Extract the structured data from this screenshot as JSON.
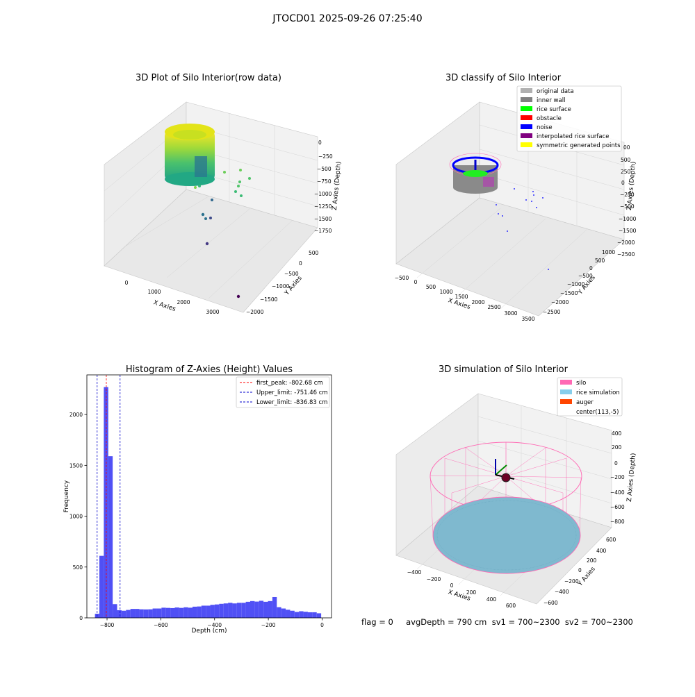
{
  "suptitle": "JTOCD01 2025-09-26 07:25:40",
  "status_text": "flag = 0     avgDepth = 790 cm  sv1 = 700~2300  sv2 = 700~2300",
  "colors": {
    "bars": "#5050f5",
    "first_peak_line": "#ff0000",
    "limit_lines": "#0000cc",
    "silo": "#ff69b4",
    "rice_simulation": "#87ceeb",
    "auger": "#ff4500"
  },
  "chart_data": [
    {
      "type": "scatter",
      "title": "3D Plot of Silo Interior(row data)",
      "xlabel": "X Axies",
      "ylabel": "Y Axies",
      "zlabel": "Z Axies (Depth)",
      "x_ticks": [
        "0",
        "1000",
        "2000",
        "3000"
      ],
      "y_ticks": [
        "500",
        "0",
        "−500",
        "−1000",
        "−1500",
        "−2000"
      ],
      "z_ticks": [
        "0",
        "−250",
        "−500",
        "−750",
        "−1000",
        "−1250",
        "−1500",
        "−1750"
      ],
      "colormap": "viridis"
    },
    {
      "type": "scatter",
      "title": "3D classify of Silo Interior",
      "xlabel": "X Axies",
      "ylabel": "Y Axies",
      "zlabel": "Z Axies (Depth)",
      "x_ticks": [
        "−500",
        "0",
        "500",
        "1000",
        "1500",
        "2000",
        "2500",
        "3000",
        "3500"
      ],
      "y_ticks": [
        "1000",
        "500",
        "0",
        "−500",
        "−1000",
        "−1500",
        "−2000",
        "−2500"
      ],
      "z_ticks": [
        "500",
        "250",
        "0",
        "−250",
        "−500",
        "−1000",
        "−1500",
        "−2000",
        "−2500"
      ],
      "z_top_partial": "00",
      "legend_position": "top-right",
      "legend": [
        {
          "label": "original data",
          "color": "#b0b0b0"
        },
        {
          "label": "inner wall",
          "color": "#808080"
        },
        {
          "label": "rice surface",
          "color": "#00ff00"
        },
        {
          "label": "obstacle",
          "color": "#ff0000"
        },
        {
          "label": "noise",
          "color": "#0000ff"
        },
        {
          "label": "interpolated rice surface",
          "color": "#800080"
        },
        {
          "label": "symmetric generated points",
          "color": "#ffff00"
        }
      ]
    },
    {
      "type": "bar",
      "title": "Histogram of Z-Axies (Height) Values",
      "xlabel": "Depth (cm)",
      "ylabel": "Frequency",
      "xlim": [
        -875,
        35
      ],
      "ylim": [
        0,
        2390
      ],
      "x_ticks": [
        -800,
        -600,
        -400,
        -200,
        0
      ],
      "x_tick_labels": [
        "−800",
        "−600",
        "−400",
        "−200",
        "0"
      ],
      "y_ticks": [
        0,
        500,
        1000,
        1500,
        2000
      ],
      "y_tick_labels": [
        "0",
        "500",
        "1000",
        "1500",
        "2000"
      ],
      "bin_edges": [
        -845.0,
        -828.5,
        -812.0,
        -795.5,
        -779.0,
        -762.5,
        -746.0,
        -729.5,
        -713.0,
        -696.5,
        -680.0,
        -663.5,
        -647.0,
        -630.5,
        -614.0,
        -597.5,
        -581.0,
        -564.5,
        -548.0,
        -531.5,
        -515.0,
        -498.5,
        -482.0,
        -465.5,
        -449.0,
        -432.5,
        -416.0,
        -399.5,
        -383.0,
        -366.5,
        -350.0,
        -333.5,
        -317.0,
        -300.5,
        -284.0,
        -267.5,
        -251.0,
        -234.5,
        -218.0,
        -201.5,
        -185.0,
        -168.5,
        -152.0,
        -135.5,
        -119.0,
        -102.5,
        -86.0,
        -69.5,
        -53.0,
        -36.5,
        -20.0,
        -3.5
      ],
      "values": [
        40,
        610,
        2270,
        1590,
        135,
        75,
        70,
        78,
        88,
        88,
        84,
        83,
        84,
        92,
        92,
        100,
        98,
        96,
        102,
        98,
        104,
        100,
        110,
        112,
        120,
        120,
        128,
        132,
        138,
        142,
        148,
        142,
        148,
        148,
        158,
        165,
        160,
        168,
        158,
        165,
        205,
        105,
        92,
        80,
        70,
        58,
        65,
        60,
        55,
        55,
        45
      ],
      "vlines": [
        {
          "label": "first_peak: -802.68 cm",
          "x": -802.68,
          "color": "#ff0000"
        },
        {
          "label": "Upper_limit: -751.46 cm",
          "x": -751.46,
          "color": "#0000cc"
        },
        {
          "label": "Lower_limit: -836.83 cm",
          "x": -836.83,
          "color": "#0000cc"
        }
      ],
      "legend_position": "top-right"
    },
    {
      "type": "scatter",
      "title": "3D simulation of Silo Interior",
      "xlabel": "X Axies",
      "ylabel": "Y Axies",
      "zlabel": "Z Axies (Depth)",
      "x_ticks": [
        "−400",
        "−200",
        "0",
        "200",
        "400",
        "600"
      ],
      "y_ticks": [
        "600",
        "400",
        "200",
        "0",
        "−200",
        "−400",
        "−600"
      ],
      "z_ticks": [
        "400",
        "200",
        "0",
        "−200",
        "−400",
        "−600",
        "−800"
      ],
      "legend_position": "top-right",
      "legend": [
        {
          "label": "silo",
          "color": "#ff69b4"
        },
        {
          "label": "rice simulation",
          "color": "#87ceeb"
        },
        {
          "label": "auger",
          "color": "#ff4500"
        },
        {
          "label": "center(113,-5)",
          "color": ""
        }
      ]
    }
  ]
}
